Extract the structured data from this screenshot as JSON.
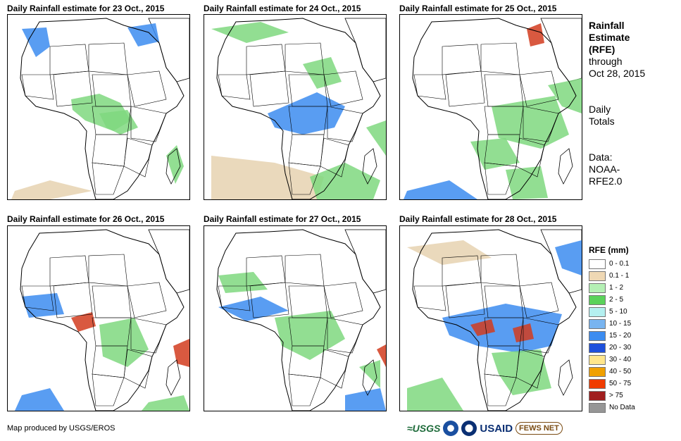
{
  "panels": [
    {
      "title": "Daily Rainfall estimate for 23 Oct., 2015",
      "rain": [
        [
          "blue",
          "30,40 20,20 55,18 60,45 40,60"
        ],
        [
          "lg",
          "90,120 130,112 160,125 175,150 150,165 110,150 92,135"
        ],
        [
          "lg",
          "130,140 170,135 185,160 160,170 140,160"
        ],
        [
          "blue",
          "170,18 210,12 215,38 185,45"
        ],
        [
          "lg",
          "225,200 240,185 250,215 238,240"
        ],
        [
          "tan",
          "10,250 60,235 120,250 60,262 5,262"
        ]
      ]
    },
    {
      "title": "Daily Rainfall estimate for 24 Oct., 2015",
      "rain": [
        [
          "lg",
          "10,20 80,10 120,25 60,40"
        ],
        [
          "blue",
          "90,140 160,110 200,130 185,160 140,170 100,160"
        ],
        [
          "lg",
          "140,70 180,60 195,95 160,105"
        ],
        [
          "tan",
          "10,200 100,210 170,230 160,262 10,262"
        ],
        [
          "lg",
          "150,230 200,210 250,235 240,262 160,262"
        ],
        [
          "lg",
          "230,160 258,150 258,200"
        ]
      ]
    },
    {
      "title": "Daily Rainfall estimate for 25 Oct., 2015",
      "rain": [
        [
          "red",
          "180,20 200,12 205,40 185,45"
        ],
        [
          "lg",
          "130,130 220,115 240,170 200,190 140,175"
        ],
        [
          "lg",
          "100,180 150,175 170,210 120,220"
        ],
        [
          "blue",
          "10,250 70,235 110,262 5,262"
        ],
        [
          "lg",
          "150,220 200,215 210,260 160,262"
        ],
        [
          "lg",
          "210,100 258,90 258,140 230,130"
        ]
      ]
    },
    {
      "title": "Daily Rainfall estimate for 26 Oct., 2015",
      "rain": [
        [
          "red",
          "90,130 120,122 125,142 100,150"
        ],
        [
          "blue",
          "20,100 70,95 80,125 30,130"
        ],
        [
          "lg",
          "130,140 180,130 200,175 170,200 135,185"
        ],
        [
          "red",
          "235,170 258,160 258,200 240,195"
        ],
        [
          "lg",
          "200,250 250,240 258,262 190,262"
        ],
        [
          "blue",
          "20,240 60,230 80,262 10,262"
        ]
      ]
    },
    {
      "title": "Daily Rainfall estimate for 27 Oct., 2015",
      "rain": [
        [
          "blue",
          "20,115 80,100 120,120 60,135"
        ],
        [
          "lg",
          "100,130 180,120 200,160 150,190 110,170"
        ],
        [
          "lg",
          "20,70 70,65 90,90 30,95"
        ],
        [
          "red",
          "245,175 258,168 258,200"
        ],
        [
          "blue",
          "200,240 250,230 258,262 200,262"
        ],
        [
          "lg",
          "220,200 250,190 250,230"
        ]
      ]
    },
    {
      "title": "Daily Rainfall estimate for 28 Oct., 2015",
      "rain": [
        [
          "blue",
          "60,130 150,110 230,125 215,170 170,180 110,170 70,155"
        ],
        [
          "red",
          "100,140 130,132 135,150 110,156"
        ],
        [
          "red",
          "160,145 185,138 190,160 165,165"
        ],
        [
          "lg",
          "130,180 200,175 215,230 160,240 140,210"
        ],
        [
          "tan",
          "10,30 90,20 130,45 60,55"
        ],
        [
          "blue",
          "220,30 258,20 258,70 230,60"
        ],
        [
          "lg",
          "10,230 60,215 90,262 10,262"
        ]
      ]
    }
  ],
  "side": {
    "title1": "Rainfall",
    "title2": "Estimate",
    "title3": "(RFE)",
    "through": "through",
    "date": "Oct 28, 2015",
    "daily": "Daily",
    "totals": "Totals",
    "data": "Data:",
    "noaa": "NOAA-",
    "rfe": "RFE2.0"
  },
  "legend": {
    "title": "RFE (mm)",
    "items": [
      {
        "label": "0 - 0.1",
        "color": "#ffffff"
      },
      {
        "label": "0.1 - 1",
        "color": "#efd8b4"
      },
      {
        "label": "1 - 2",
        "color": "#b4f0b4"
      },
      {
        "label": "2 - 5",
        "color": "#5ad25a"
      },
      {
        "label": "5 - 10",
        "color": "#b4f0f0"
      },
      {
        "label": "10 - 15",
        "color": "#78b4f0"
      },
      {
        "label": "15 - 20",
        "color": "#3c8cf0"
      },
      {
        "label": "20 - 30",
        "color": "#1e50dc"
      },
      {
        "label": "30 - 40",
        "color": "#ffe68c"
      },
      {
        "label": "40 - 50",
        "color": "#f0a000"
      },
      {
        "label": "50 - 75",
        "color": "#f03c00"
      },
      {
        "label": "> 75",
        "color": "#a01e1e"
      },
      {
        "label": "No Data",
        "color": "#969696"
      }
    ]
  },
  "credit": "Map produced by USGS/EROS",
  "logos": {
    "usgs": "≈USGS",
    "usaid": "USAID",
    "fews": "FEWS NET"
  },
  "colors": {
    "lg": "#7fd87f",
    "blue": "#3c8cf0",
    "red": "#d23c1e",
    "tan": "#e6d2b0"
  }
}
